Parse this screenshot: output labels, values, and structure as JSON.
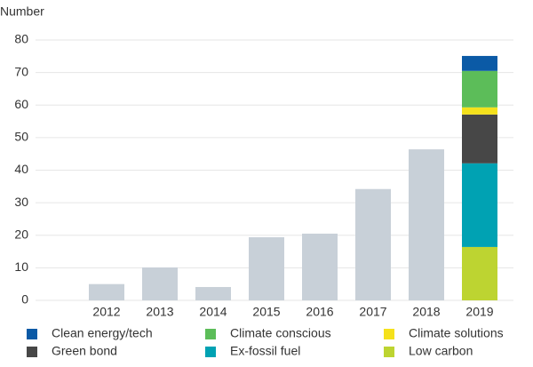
{
  "chart_data": {
    "type": "stacked_bar",
    "y_axis_label": "Number",
    "categories": [
      null,
      "2012",
      "2013",
      "2014",
      "2015",
      "2016",
      "2017",
      "2018",
      "2019"
    ],
    "series": [
      {
        "color": "#c8d0d8",
        "values": [
          null,
          5,
          10.1,
          4.1,
          19.4,
          20.5,
          34.2,
          46.4,
          null
        ]
      },
      {
        "name": "Clean energy/tech",
        "color": "#0b5aa6",
        "values": [
          null,
          null,
          null,
          null,
          null,
          null,
          null,
          null,
          4.6
        ]
      },
      {
        "name": "Climate conscious",
        "color": "#5cbd59",
        "values": [
          null,
          null,
          null,
          null,
          null,
          null,
          null,
          null,
          11.2
        ]
      },
      {
        "name": "Climate solutions",
        "color": "#f5e11c",
        "values": [
          null,
          null,
          null,
          null,
          null,
          null,
          null,
          null,
          2.2
        ]
      },
      {
        "name": "Green bond",
        "color": "#474747",
        "values": [
          null,
          null,
          null,
          null,
          null,
          null,
          null,
          null,
          15.0
        ]
      },
      {
        "name": "Ex-fossil fuel",
        "color": "#00a2b3",
        "values": [
          null,
          null,
          null,
          null,
          null,
          null,
          null,
          null,
          25.7
        ]
      },
      {
        "name": "Low carbon",
        "color": "#bdd431",
        "values": [
          null,
          null,
          null,
          null,
          null,
          null,
          null,
          null,
          16.4
        ]
      }
    ],
    "ylim": [
      0,
      80
    ],
    "yticks": [
      0,
      10,
      20,
      30,
      40,
      50,
      60,
      70,
      80
    ],
    "grid": true
  }
}
